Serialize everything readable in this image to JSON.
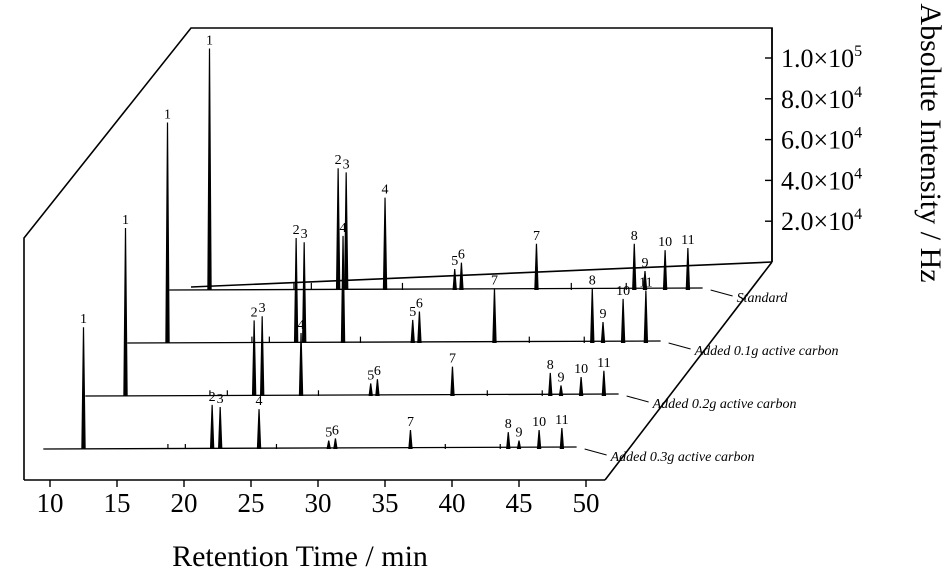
{
  "chart_data": {
    "type": "line",
    "style": "3d-waterfall",
    "xlabel": "Retention Time / min",
    "ylabel": "Absolute Intensity / Hz",
    "xlim": [
      9,
      50
    ],
    "x_ticks": [
      "10",
      "15",
      "20",
      "25",
      "30",
      "35",
      "40",
      "45",
      "50"
    ],
    "ylim": [
      0,
      110000
    ],
    "y_ticks": [
      {
        "mantissa": "2.0×10",
        "exp": "4",
        "value": 20000
      },
      {
        "mantissa": "4.0×10",
        "exp": "4",
        "value": 40000
      },
      {
        "mantissa": "6.0×10",
        "exp": "4",
        "value": 60000
      },
      {
        "mantissa": "8.0×10",
        "exp": "4",
        "value": 80000
      },
      {
        "mantissa": "1.0×10",
        "exp": "5",
        "value": 100000
      }
    ],
    "grid": false,
    "line_color": "#000000",
    "series": [
      {
        "name": "Added 0.3g active carbon",
        "peaks": [
          {
            "label": "1",
            "x": 12.5,
            "y": 58000
          },
          {
            "label": "2",
            "x": 22.1,
            "y": 21000
          },
          {
            "label": "3",
            "x": 22.7,
            "y": 20000
          },
          {
            "label": "4",
            "x": 25.6,
            "y": 19000
          },
          {
            "label": "5",
            "x": 30.8,
            "y": 4000
          },
          {
            "label": "6",
            "x": 31.3,
            "y": 5000
          },
          {
            "label": "7",
            "x": 36.9,
            "y": 9000
          },
          {
            "label": "8",
            "x": 44.2,
            "y": 8000
          },
          {
            "label": "9",
            "x": 45.0,
            "y": 4000
          },
          {
            "label": "10",
            "x": 46.5,
            "y": 9000
          },
          {
            "label": "11",
            "x": 48.2,
            "y": 10000
          }
        ]
      },
      {
        "name": "Added 0.2g active carbon",
        "peaks": [
          {
            "label": "1",
            "x": 12.5,
            "y": 80000
          },
          {
            "label": "2",
            "x": 22.1,
            "y": 36000
          },
          {
            "label": "3",
            "x": 22.7,
            "y": 38000
          },
          {
            "label": "4",
            "x": 25.6,
            "y": 30000
          },
          {
            "label": "5",
            "x": 30.8,
            "y": 6000
          },
          {
            "label": "6",
            "x": 31.3,
            "y": 8000
          },
          {
            "label": "7",
            "x": 36.9,
            "y": 14000
          },
          {
            "label": "8",
            "x": 44.2,
            "y": 11000
          },
          {
            "label": "9",
            "x": 45.0,
            "y": 5000
          },
          {
            "label": "10",
            "x": 46.5,
            "y": 9000
          },
          {
            "label": "11",
            "x": 48.2,
            "y": 12000
          }
        ]
      },
      {
        "name": "Added 0.1g active carbon",
        "peaks": [
          {
            "label": "1",
            "x": 12.5,
            "y": 105000
          },
          {
            "label": "2",
            "x": 22.1,
            "y": 50000
          },
          {
            "label": "3",
            "x": 22.7,
            "y": 48000
          },
          {
            "label": "4",
            "x": 25.6,
            "y": 51000
          },
          {
            "label": "5",
            "x": 30.8,
            "y": 11000
          },
          {
            "label": "6",
            "x": 31.3,
            "y": 15000
          },
          {
            "label": "7",
            "x": 36.9,
            "y": 26000
          },
          {
            "label": "8",
            "x": 44.2,
            "y": 26000
          },
          {
            "label": "9",
            "x": 45.0,
            "y": 10000
          },
          {
            "label": "10",
            "x": 46.5,
            "y": 21000
          },
          {
            "label": "11",
            "x": 48.2,
            "y": 25000
          }
        ]
      },
      {
        "name": "Standard",
        "peaks": [
          {
            "label": "1",
            "x": 12.5,
            "y": 115000
          },
          {
            "label": "2",
            "x": 22.1,
            "y": 58000
          },
          {
            "label": "3",
            "x": 22.7,
            "y": 56000
          },
          {
            "label": "4",
            "x": 25.6,
            "y": 44000
          },
          {
            "label": "5",
            "x": 30.8,
            "y": 10000
          },
          {
            "label": "6",
            "x": 31.3,
            "y": 13000
          },
          {
            "label": "7",
            "x": 36.9,
            "y": 22000
          },
          {
            "label": "8",
            "x": 44.2,
            "y": 22000
          },
          {
            "label": "9",
            "x": 45.0,
            "y": 9000
          },
          {
            "label": "10",
            "x": 46.5,
            "y": 19000
          },
          {
            "label": "11",
            "x": 48.2,
            "y": 20000
          }
        ]
      }
    ]
  }
}
